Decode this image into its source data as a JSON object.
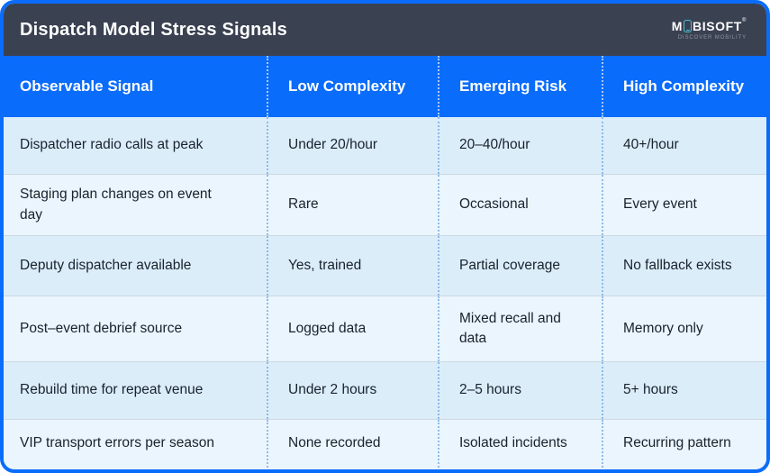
{
  "header": {
    "title": "Dispatch Model Stress Signals",
    "logo": {
      "prefix": "M",
      "suffix": "BISOFT",
      "mark": "®",
      "tagline": "DISCOVER MOBILITY",
      "accent_color": "#49c3de"
    }
  },
  "table": {
    "columns": [
      "Observable Signal",
      "Low Complexity",
      "Emerging Risk",
      "High Complexity"
    ],
    "rows": [
      [
        "Dispatcher radio calls at peak",
        "Under 20/hour",
        "20–40/hour",
        "40+/hour"
      ],
      [
        "Staging plan changes on event day",
        "Rare",
        "Occasional",
        "Every event"
      ],
      [
        "Deputy dispatcher available",
        "Yes, trained",
        "Partial coverage",
        "No fallback exists"
      ],
      [
        "Post–event debrief source",
        "Logged data",
        "Mixed recall and data",
        "Memory only"
      ],
      [
        "Rebuild time for repeat venue",
        "Under 2 hours",
        "2–5 hours",
        "5+ hours"
      ],
      [
        "VIP transport errors per season",
        "None recorded",
        "Isolated incidents",
        "Recurring pattern"
      ]
    ]
  },
  "colors": {
    "border_and_header_blue": "#0a6cfa",
    "topbar_dark": "#3a4151",
    "row_odd": "#dcedfa",
    "row_even": "#ebf5fd",
    "row_divider": "#ccd8e0",
    "body_text": "#18222e"
  }
}
